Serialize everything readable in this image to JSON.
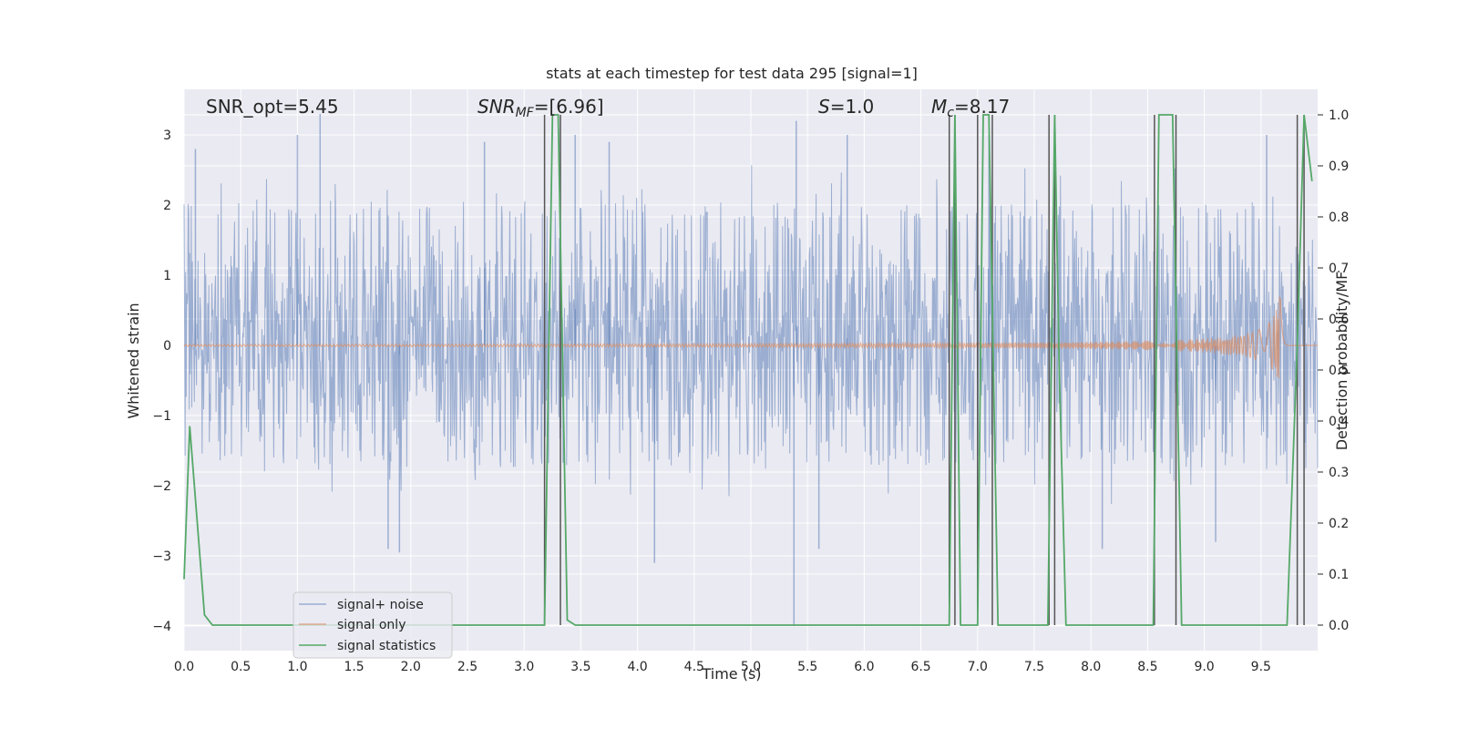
{
  "chart_data": {
    "type": "line",
    "title": "stats at each timestep for test data 295 [signal=1]",
    "xlabel": "Time (s)",
    "ylabel": "Whitened strain",
    "y2label": "Detection probability/MF",
    "xlim": [
      0.0,
      10.0
    ],
    "ylim": [
      -4.35,
      3.65
    ],
    "y2lim": [
      -0.05,
      1.05
    ],
    "xticks": [
      0.0,
      0.5,
      1.0,
      1.5,
      2.0,
      2.5,
      3.0,
      3.5,
      4.0,
      4.5,
      5.0,
      5.5,
      6.0,
      6.5,
      7.0,
      7.5,
      8.0,
      8.5,
      9.0,
      9.5
    ],
    "xtick_labels": [
      "0.0",
      "0.5",
      "1.0",
      "1.5",
      "2.0",
      "2.5",
      "3.0",
      "3.5",
      "4.0",
      "4.5",
      "5.0",
      "5.5",
      "6.0",
      "6.5",
      "7.0",
      "7.5",
      "8.0",
      "8.5",
      "9.0",
      "9.5"
    ],
    "yticks": [
      3,
      2,
      1,
      0,
      -1,
      -2,
      -3,
      -4
    ],
    "ytick_labels": [
      "3",
      "2",
      "1",
      "0",
      "−1",
      "−2",
      "−3",
      "−4"
    ],
    "y2ticks": [
      1.0,
      0.9,
      0.8,
      0.7,
      0.6,
      0.5,
      0.4,
      0.3,
      0.2,
      0.1,
      0.0
    ],
    "y2tick_labels": [
      "1.0",
      "0.9",
      "0.8",
      "0.7",
      "0.6",
      "0.5",
      "0.4",
      "0.3",
      "0.2",
      "0.1",
      "0.0"
    ],
    "annotations": {
      "snr_opt": "SNR_opt=5.45",
      "snr_mf_sym": "SNR",
      "snr_mf_sub": "MF",
      "snr_mf_val": "=[6.96]",
      "s_sym": "S",
      "s_val": "=1.0",
      "mc_sym": "M",
      "mc_sub": "c",
      "mc_val": "=8.17"
    },
    "legend": {
      "position": "lower-left",
      "entries": [
        "signal+ noise",
        "signal only",
        "signal statistics"
      ]
    },
    "series": [
      {
        "name": "signal+ noise",
        "color": "#4c72b0",
        "axis": "left",
        "kind": "noise",
        "band": [
          -1.75,
          2.05
        ],
        "peaks": [
          [
            0.1,
            2.8
          ],
          [
            1.0,
            3.0
          ],
          [
            1.2,
            3.3
          ],
          [
            2.65,
            2.9
          ],
          [
            3.45,
            3.0
          ],
          [
            3.75,
            2.9
          ],
          [
            5.4,
            3.2
          ],
          [
            5.85,
            3.0
          ],
          [
            7.1,
            3.0
          ],
          [
            9.55,
            3.0
          ],
          [
            1.8,
            -2.9
          ],
          [
            1.9,
            -2.95
          ],
          [
            4.15,
            -3.1
          ],
          [
            5.38,
            -4.0
          ],
          [
            5.6,
            -2.9
          ],
          [
            8.1,
            -2.9
          ],
          [
            9.1,
            -2.8
          ]
        ]
      },
      {
        "name": "signal only",
        "color": "#dd8452",
        "axis": "left",
        "kind": "chirp",
        "merger_time": 9.67,
        "peak_amplitude": 0.75
      },
      {
        "name": "signal statistics",
        "color": "#55a868",
        "axis": "right",
        "kind": "line",
        "x": [
          0.0,
          0.05,
          0.18,
          0.25,
          3.18,
          3.25,
          3.3,
          3.38,
          3.45,
          6.75,
          6.8,
          6.85,
          6.9,
          7.0,
          7.05,
          7.1,
          7.18,
          7.62,
          7.68,
          7.72,
          7.78,
          8.55,
          8.6,
          8.72,
          8.8,
          9.73,
          9.82,
          9.88,
          9.95
        ],
        "y": [
          0.09,
          0.39,
          0.02,
          0.0,
          0.0,
          1.0,
          1.0,
          0.01,
          0.0,
          0.0,
          1.0,
          0.0,
          0.0,
          0.0,
          1.0,
          1.0,
          0.0,
          0.0,
          1.0,
          0.5,
          0.0,
          0.0,
          1.0,
          1.0,
          0.0,
          0.0,
          0.55,
          1.0,
          0.87
        ]
      }
    ],
    "vlines": {
      "color": "#555555",
      "x": [
        3.18,
        3.32,
        6.75,
        6.8,
        7.0,
        7.13,
        7.63,
        7.68,
        8.56,
        8.75,
        9.82,
        9.88
      ]
    }
  }
}
